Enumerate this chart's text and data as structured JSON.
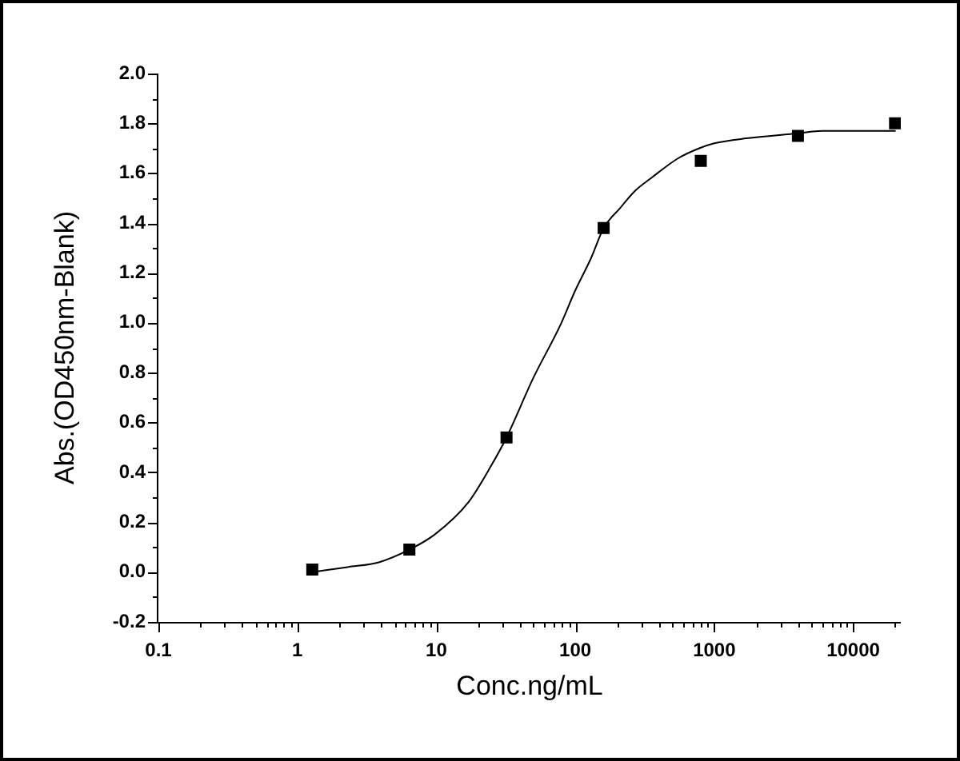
{
  "chart_data": {
    "type": "scatter",
    "xlabel": "Conc.ng/mL",
    "ylabel": "Abs.(OD450nm-Blank)",
    "log": "x",
    "xlim": [
      0.1,
      22000
    ],
    "xticks": [
      0.1,
      {
        "value": 0.2,
        "label": null
      },
      {
        "value": 0.3,
        "label": null
      },
      {
        "value": 0.4,
        "label": null
      },
      {
        "value": 0.5,
        "label": null
      },
      {
        "value": 0.6,
        "label": null
      },
      {
        "value": 0.7,
        "label": null
      },
      {
        "value": 0.8,
        "label": null
      },
      {
        "value": 0.9,
        "label": null
      },
      1,
      {
        "value": 2,
        "label": null
      },
      {
        "value": 3,
        "label": null
      },
      {
        "value": 4,
        "label": null
      },
      {
        "value": 5,
        "label": null
      },
      {
        "value": 6,
        "label": null
      },
      {
        "value": 7,
        "label": null
      },
      {
        "value": 8,
        "label": null
      },
      {
        "value": 9,
        "label": null
      },
      10,
      {
        "value": 20,
        "label": null
      },
      {
        "value": 30,
        "label": null
      },
      {
        "value": 40,
        "label": null
      },
      {
        "value": 50,
        "label": null
      },
      {
        "value": 60,
        "label": null
      },
      {
        "value": 70,
        "label": null
      },
      {
        "value": 80,
        "label": null
      },
      {
        "value": 90,
        "label": null
      },
      100,
      {
        "value": 200,
        "label": null
      },
      {
        "value": 300,
        "label": null
      },
      {
        "value": 400,
        "label": null
      },
      {
        "value": 500,
        "label": null
      },
      {
        "value": 600,
        "label": null
      },
      {
        "value": 700,
        "label": null
      },
      {
        "value": 800,
        "label": null
      },
      {
        "value": 900,
        "label": null
      },
      1000,
      {
        "value": 2000,
        "label": null
      },
      {
        "value": 3000,
        "label": null
      },
      {
        "value": 4000,
        "label": null
      },
      {
        "value": 5000,
        "label": null
      },
      {
        "value": 6000,
        "label": null
      },
      {
        "value": 7000,
        "label": null
      },
      {
        "value": 8000,
        "label": null
      },
      {
        "value": 9000,
        "label": null
      },
      10000,
      {
        "value": 20000,
        "label": null
      }
    ],
    "ylim": [
      -0.2,
      2.0
    ],
    "yticks": [
      -0.2,
      {
        "value": -0.1,
        "label": null
      },
      {
        "value": 0,
        "label": "0.0"
      },
      {
        "value": 0.1,
        "label": null
      },
      0.2,
      {
        "value": 0.3,
        "label": null
      },
      0.4,
      {
        "value": 0.5,
        "label": null
      },
      0.6,
      {
        "value": 0.7,
        "label": null
      },
      0.8,
      {
        "value": 0.9,
        "label": null
      },
      {
        "value": 1,
        "label": "1.0"
      },
      {
        "value": 1.1,
        "label": null
      },
      1.2,
      {
        "value": 1.3,
        "label": null
      },
      1.4,
      {
        "value": 1.5,
        "label": null
      },
      1.6,
      {
        "value": 1.7,
        "label": null
      },
      1.8,
      {
        "value": 1.9,
        "label": null
      },
      {
        "value": 2,
        "label": "2.0"
      }
    ],
    "series": [
      {
        "color": "#000000",
        "marker": "square",
        "x": [
          1.28,
          6.4,
          32,
          160,
          800,
          4000,
          20000
        ],
        "values": [
          0.01,
          0.09,
          0.54,
          1.38,
          1.65,
          1.75,
          1.8
        ]
      },
      {
        "type": "line",
        "color": "#000000",
        "marker": "none",
        "x": [
          1.28,
          2.3,
          3.9,
          6.4,
          9.7,
          17,
          25,
          32,
          50,
          78,
          100,
          130,
          160,
          210,
          270,
          350,
          550,
          780,
          1000,
          1700,
          4000,
          6000,
          20000
        ],
        "values": [
          0.0,
          0.02,
          0.04,
          0.09,
          0.15,
          0.28,
          0.43,
          0.54,
          0.78,
          0.99,
          1.13,
          1.26,
          1.38,
          1.46,
          1.53,
          1.58,
          1.66,
          1.7,
          1.72,
          1.74,
          1.76,
          1.77,
          1.77
        ]
      }
    ]
  }
}
